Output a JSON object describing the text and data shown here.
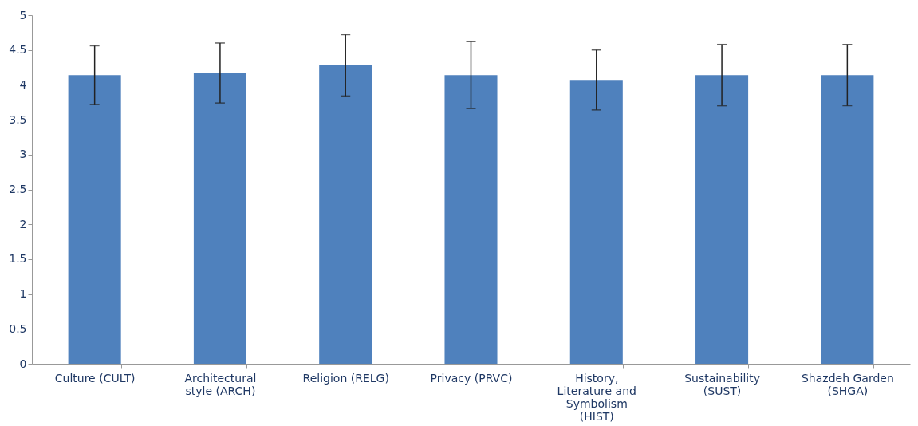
{
  "chart_data": {
    "type": "bar",
    "categories": [
      "Culture (CULT)",
      "Architectural style (ARCH)",
      "Religion (RELG)",
      "Privacy (PRVC)",
      "History, Literature and Symbolism (HIST)",
      "Sustainability (SUST)",
      "Shazdeh Garden (SHGA)"
    ],
    "values": [
      4.14,
      4.17,
      4.28,
      4.14,
      4.07,
      4.14,
      4.14
    ],
    "errors": [
      0.42,
      0.43,
      0.44,
      0.48,
      0.43,
      0.44,
      0.44
    ],
    "color": "#4f81bd",
    "ylim": [
      0,
      5
    ],
    "yticks": [
      0,
      0.5,
      1,
      1.5,
      2,
      2.5,
      3,
      3.5,
      4,
      4.5,
      5
    ],
    "grid": false
  }
}
